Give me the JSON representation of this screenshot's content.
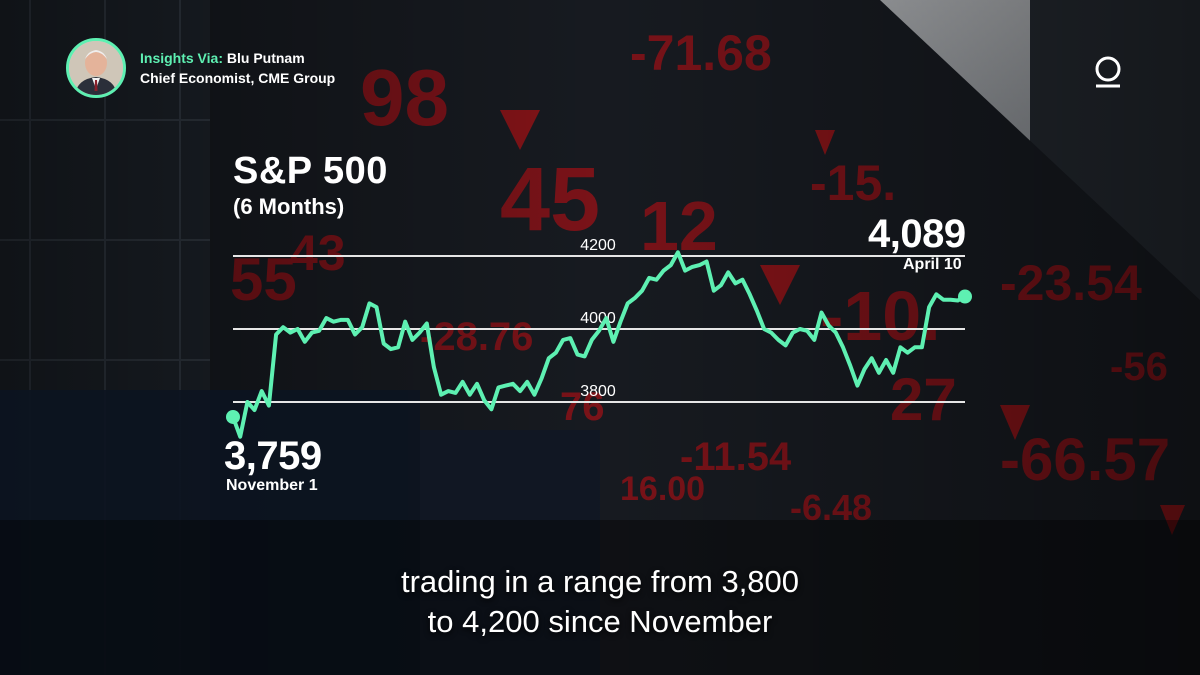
{
  "badge": {
    "prefix": "Insights Via:",
    "name": "Blu Putnam",
    "role": "Chief Economist, CME Group"
  },
  "colors": {
    "accent": "#5ef0b2",
    "ticker_red": "#c4151a",
    "gridline": "#e6e6e6"
  },
  "icons": {
    "avatar": "avatar-portrait",
    "logo": "brand-logo-icon"
  },
  "chart_data": {
    "type": "line",
    "title": "S&P 500",
    "subtitle": "(6 Months)",
    "ylim": [
      3700,
      4300
    ],
    "gridlines": [
      4200,
      4000,
      3800
    ],
    "series": [
      {
        "values": [
          3759,
          3705,
          3800,
          3778,
          3830,
          3790,
          3985,
          4005,
          3990,
          4000,
          3965,
          3990,
          3995,
          4030,
          4020,
          4025,
          4025,
          3985,
          4005,
          4070,
          4060,
          3960,
          3945,
          3950,
          4020,
          3970,
          3990,
          4015,
          3895,
          3820,
          3830,
          3825,
          3855,
          3820,
          3850,
          3805,
          3780,
          3840,
          3845,
          3850,
          3830,
          3855,
          3820,
          3865,
          3920,
          3935,
          3970,
          3975,
          3930,
          3925,
          3970,
          3995,
          4030,
          3965,
          4020,
          4070,
          4085,
          4105,
          4140,
          4135,
          4160,
          4175,
          4210,
          4160,
          4170,
          4175,
          4185,
          4105,
          4120,
          4155,
          4125,
          4135,
          4095,
          4050,
          4000,
          3990,
          3970,
          3955,
          3990,
          4000,
          3995,
          3970,
          4045,
          4010,
          3990,
          3950,
          3900,
          3845,
          3890,
          3920,
          3880,
          3915,
          3880,
          3950,
          3935,
          3950,
          3950,
          4060,
          4095,
          4080,
          4080,
          4078,
          4089
        ]
      }
    ],
    "start": {
      "value": "3,759",
      "label": "November 1"
    },
    "end": {
      "value": "4,089",
      "label": "April 10"
    }
  },
  "caption": {
    "line1": "trading in a range from 3,800",
    "line2": "to 4,200 since November"
  }
}
